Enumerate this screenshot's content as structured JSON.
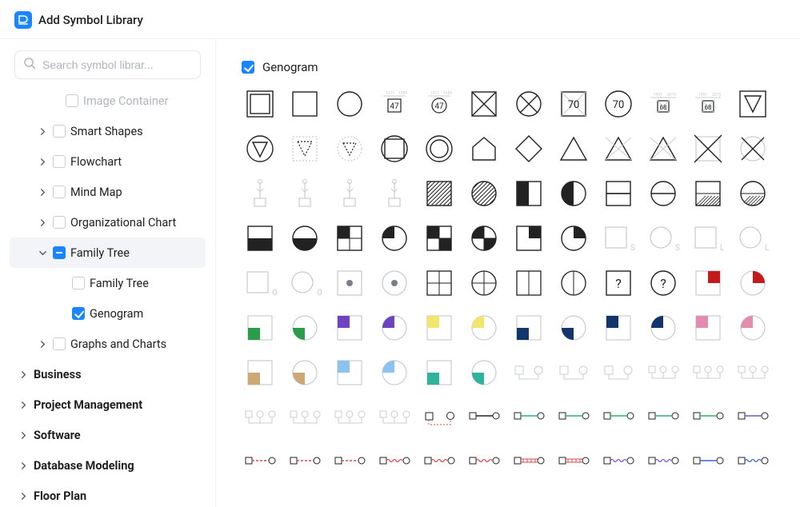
{
  "header": {
    "title": "Add Symbol Library"
  },
  "search": {
    "placeholder": "Search symbol librar..."
  },
  "colors": {
    "accent": "#1985ff",
    "stroke": "#222222",
    "stroke_light": "#c8ccd2",
    "muted": "#9aa1aa",
    "green": "#2a9d4b",
    "purple": "#6f42c1",
    "yellow": "#f1e56b",
    "navy": "#12356b",
    "pink": "#e48bb0",
    "brown": "#cda875",
    "lblue": "#8ac3ef",
    "teal": "#2fb39a",
    "red": "#c61a1a",
    "red_line": "#e04848",
    "green_line": "#28b36b",
    "blue_line": "#3a63d6",
    "violet_line": "#7a4fe0"
  },
  "tree": {
    "partial_top": "Image Container",
    "items": [
      {
        "label": "Smart Shapes",
        "level": 1,
        "caret": true,
        "chk": "empty"
      },
      {
        "label": "Flowchart",
        "level": 1,
        "caret": true,
        "chk": "empty"
      },
      {
        "label": "Mind Map",
        "level": 1,
        "caret": true,
        "chk": "empty"
      },
      {
        "label": "Organizational Chart",
        "level": 1,
        "caret": true,
        "chk": "empty"
      },
      {
        "label": "Family Tree",
        "level": 1,
        "caret": "down",
        "chk": "indeterminate",
        "active": true
      },
      {
        "label": "Family Tree",
        "level": 2,
        "chk": "empty"
      },
      {
        "label": "Genogram",
        "level": 2,
        "chk": "checked"
      },
      {
        "label": "Graphs and Charts",
        "level": 1,
        "caret": true,
        "chk": "empty"
      },
      {
        "label": "Business",
        "level": 0,
        "caret": true,
        "bold": true
      },
      {
        "label": "Project Management",
        "level": 0,
        "caret": true,
        "bold": true
      },
      {
        "label": "Software",
        "level": 0,
        "caret": true,
        "bold": true
      },
      {
        "label": "Database Modeling",
        "level": 0,
        "caret": true,
        "bold": true
      },
      {
        "label": "Floor Plan",
        "level": 0,
        "caret": true,
        "bold": true
      }
    ]
  },
  "panel": {
    "title": "Genogram"
  },
  "symbols": {
    "row1": [
      {
        "k": "sq_double"
      },
      {
        "k": "sq"
      },
      {
        "k": "circ"
      },
      {
        "k": "tag47"
      },
      {
        "k": "tag47c"
      },
      {
        "k": "sq_x"
      },
      {
        "k": "circ_x"
      },
      {
        "k": "sq70"
      },
      {
        "k": "circ70"
      },
      {
        "k": "tag68"
      },
      {
        "k": "tag68b"
      },
      {
        "k": "tri_down_sq"
      }
    ],
    "row2": [
      {
        "k": "tri_down_circ"
      },
      {
        "k": "tri_down_dotsq"
      },
      {
        "k": "tri_down_dotcirc"
      },
      {
        "k": "sq_in_sq"
      },
      {
        "k": "circ_in_sq"
      },
      {
        "k": "house"
      },
      {
        "k": "diamond"
      },
      {
        "k": "tri_up"
      },
      {
        "k": "tri_up_x"
      },
      {
        "k": "tri_up_x2"
      },
      {
        "k": "sq_x2"
      },
      {
        "k": "circ_x2"
      }
    ],
    "row3": [
      {
        "k": "plant"
      },
      {
        "k": "plant"
      },
      {
        "k": "plant"
      },
      {
        "k": "plant"
      },
      {
        "k": "sq_stripes"
      },
      {
        "k": "circ_stripes"
      },
      {
        "k": "sq_half_l"
      },
      {
        "k": "circ_half_l"
      },
      {
        "k": "sq_half_t"
      },
      {
        "k": "circ_half_t"
      },
      {
        "k": "sq_half_b_h"
      },
      {
        "k": "circ_half_b_h"
      }
    ],
    "row4": [
      {
        "k": "sq_half_b"
      },
      {
        "k": "circ_half_b"
      },
      {
        "k": "sq_quad_tl"
      },
      {
        "k": "circ_quad_tl"
      },
      {
        "k": "sq_check"
      },
      {
        "k": "circ_wheel"
      },
      {
        "k": "sq_quad_tr"
      },
      {
        "k": "circ_quad_tr"
      },
      {
        "k": "sq_sub",
        "sub": "S"
      },
      {
        "k": "circ_sub",
        "sub": "S"
      },
      {
        "k": "sq_sub",
        "sub": "L"
      },
      {
        "k": "circ_sub",
        "sub": "L"
      }
    ],
    "row5": [
      {
        "k": "sq_sub",
        "sub": "O"
      },
      {
        "k": "circ_sub",
        "sub": "O"
      },
      {
        "k": "sq_dot"
      },
      {
        "k": "circ_dot"
      },
      {
        "k": "sq_grid"
      },
      {
        "k": "circ_grid"
      },
      {
        "k": "sq_split"
      },
      {
        "k": "circ_split"
      },
      {
        "k": "sq_q",
        "txt": "?"
      },
      {
        "k": "circ_q",
        "txt": "?"
      },
      {
        "k": "sq_corner",
        "c": "red"
      },
      {
        "k": "circ_corner",
        "c": "red"
      }
    ],
    "row6": [
      {
        "k": "sq_bl",
        "c": "green"
      },
      {
        "k": "circ_bl",
        "c": "green"
      },
      {
        "k": "sq_tl",
        "c": "purple"
      },
      {
        "k": "circ_tl",
        "c": "purple"
      },
      {
        "k": "sq_tl",
        "c": "yellow"
      },
      {
        "k": "circ_tl",
        "c": "yellow"
      },
      {
        "k": "sq_bl",
        "c": "navy"
      },
      {
        "k": "circ_bl",
        "c": "navy"
      },
      {
        "k": "sq_tl",
        "c": "navy"
      },
      {
        "k": "circ_tl",
        "c": "navy"
      },
      {
        "k": "sq_tl",
        "c": "pink"
      },
      {
        "k": "circ_tl",
        "c": "pink"
      }
    ],
    "row7": [
      {
        "k": "sq_bl",
        "c": "brown"
      },
      {
        "k": "circ_bl",
        "c": "brown"
      },
      {
        "k": "sq_tl",
        "c": "lblue"
      },
      {
        "k": "circ_tl",
        "c": "lblue"
      },
      {
        "k": "sq_bl",
        "c": "teal"
      },
      {
        "k": "circ_bl",
        "c": "teal"
      },
      {
        "k": "pair_light"
      },
      {
        "k": "pair_light"
      },
      {
        "k": "pair_light"
      },
      {
        "k": "trio_light"
      },
      {
        "k": "trio_light"
      },
      {
        "k": "trio_light"
      }
    ],
    "row8": [
      {
        "k": "trio_light"
      },
      {
        "k": "trio_light"
      },
      {
        "k": "trio_light"
      },
      {
        "k": "trio_light"
      },
      {
        "k": "pair_red_dash"
      },
      {
        "k": "pair_line",
        "c": "stroke"
      },
      {
        "k": "pair_line",
        "c": "green_line"
      },
      {
        "k": "pair_line",
        "c": "green_line"
      },
      {
        "k": "pair_line",
        "c": "green_line"
      },
      {
        "k": "pair_line",
        "c": "green_line"
      },
      {
        "k": "pair_line",
        "c": "green_line"
      },
      {
        "k": "pair_line",
        "c": "violet_line"
      }
    ],
    "row9": [
      {
        "k": "pair_dash",
        "c": "red_line"
      },
      {
        "k": "pair_dash",
        "c": "red_line"
      },
      {
        "k": "pair_dash",
        "c": "red_line"
      },
      {
        "k": "pair_wave",
        "c": "red_line"
      },
      {
        "k": "pair_wave",
        "c": "red_line"
      },
      {
        "k": "pair_wave",
        "c": "red_line"
      },
      {
        "k": "pair_rail",
        "c": "red_line"
      },
      {
        "k": "pair_rail",
        "c": "red_line"
      },
      {
        "k": "pair_wave",
        "c": "violet_line"
      },
      {
        "k": "pair_wave",
        "c": "violet_line"
      },
      {
        "k": "pair_line",
        "c": "blue_line"
      },
      {
        "k": "pair_wave",
        "c": "blue_line"
      }
    ]
  }
}
